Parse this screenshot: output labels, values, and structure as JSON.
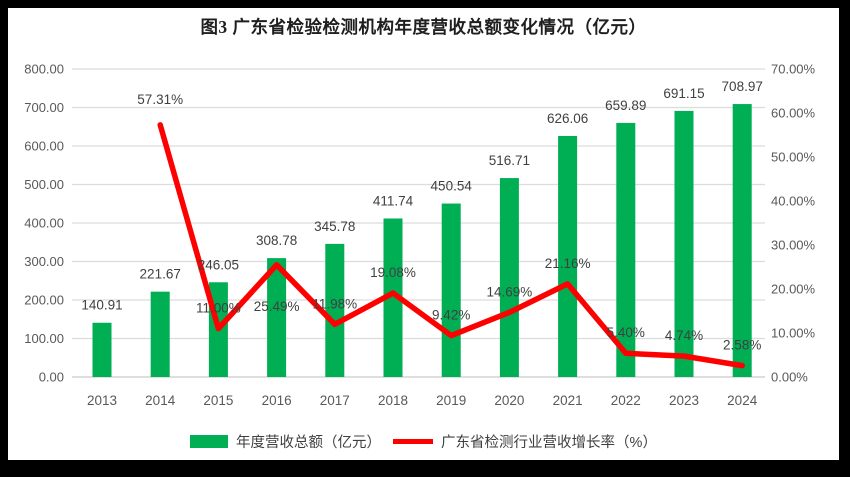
{
  "chart_data": {
    "type": "bar+line",
    "title": "图3 广东省检验检测机构年度营收总额变化情况（亿元）",
    "categories": [
      "2013",
      "2014",
      "2015",
      "2016",
      "2017",
      "2018",
      "2019",
      "2020",
      "2021",
      "2022",
      "2023",
      "2024"
    ],
    "series": [
      {
        "name": "年度营收总额（亿元）",
        "type": "bar",
        "axis": "left",
        "color": "#00ae54",
        "values": [
          140.91,
          221.67,
          246.05,
          308.78,
          345.78,
          411.74,
          450.54,
          516.71,
          626.06,
          659.89,
          691.15,
          708.97
        ],
        "data_labels": [
          "140.91",
          "221.67",
          "246.05",
          "308.78",
          "345.78",
          "411.74",
          "450.54",
          "516.71",
          "626.06",
          "659.89",
          "691.15",
          "708.97"
        ]
      },
      {
        "name": "广东省检测行业营收增长率（%）",
        "type": "line",
        "axis": "right",
        "color": "#fe0000",
        "values": [
          null,
          57.31,
          11.0,
          25.49,
          11.98,
          19.08,
          9.42,
          14.69,
          21.16,
          5.4,
          4.74,
          2.58
        ],
        "data_labels": [
          null,
          "57.31%",
          "11.00%",
          "25.49%",
          "11.98%",
          "19.08%",
          "9.42%",
          "14.69%",
          "21.16%",
          "5.40%",
          "4.74%",
          "2.58%"
        ]
      }
    ],
    "left_axis": {
      "min": 0,
      "max": 800,
      "step": 100,
      "tick_labels": [
        "0.00",
        "100.00",
        "200.00",
        "300.00",
        "400.00",
        "500.00",
        "600.00",
        "700.00",
        "800.00"
      ]
    },
    "right_axis": {
      "min": 0,
      "max": 70,
      "step": 10,
      "tick_labels": [
        "0.00%",
        "10.00%",
        "20.00%",
        "30.00%",
        "40.00%",
        "50.00%",
        "60.00%",
        "70.00%"
      ]
    },
    "grid": true,
    "legend_position": "bottom",
    "label_hints": {
      "default_line_label_dy": -16,
      "line_label_dy": {
        "2014": -21,
        "2016": 46
      },
      "bar_label_dy": -13
    },
    "colors": {
      "gridline": "#dcdcdc",
      "axis_line": "#c9c9c9",
      "tick_text": "#595959",
      "data_label_text": "#404040",
      "title_text": "#1f1f1f"
    }
  }
}
